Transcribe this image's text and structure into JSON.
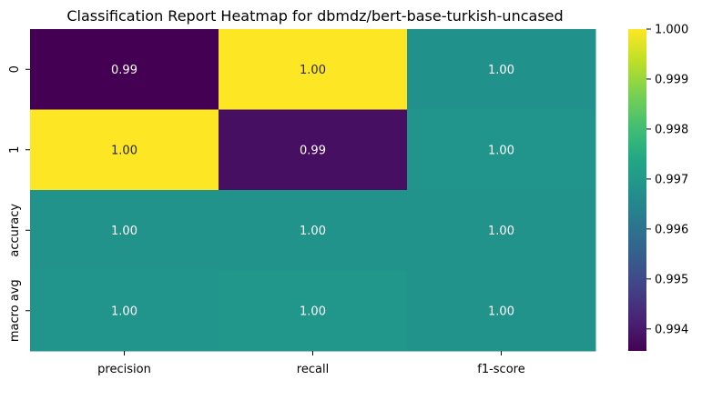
{
  "chart_data": {
    "type": "heatmap",
    "title": "Classification Report Heatmap for dbmdz/bert-base-turkish-uncased",
    "xlabel": "",
    "ylabel": "",
    "x_categories": [
      "precision",
      "recall",
      "f1-score"
    ],
    "y_categories": [
      "0",
      "1",
      "accuracy",
      "macro avg"
    ],
    "values": [
      [
        0.99356,
        1.0,
        0.99678
      ],
      [
        1.0,
        0.99382,
        0.9969
      ],
      [
        0.99684,
        0.99684,
        0.99684
      ],
      [
        0.9969,
        0.99691,
        0.99684
      ]
    ],
    "annotations": [
      [
        "0.99",
        "1.00",
        "1.00"
      ],
      [
        "1.00",
        "0.99",
        "1.00"
      ],
      [
        "1.00",
        "1.00",
        "1.00"
      ],
      [
        "1.00",
        "1.00",
        "1.00"
      ]
    ],
    "colormap": "viridis",
    "vmin": 0.99356,
    "vmax": 1.0,
    "colorbar_ticks": [
      0.994,
      0.995,
      0.996,
      0.997,
      0.998,
      0.999,
      1.0
    ],
    "colorbar_tick_labels": [
      "0.994",
      "0.995",
      "0.996",
      "0.997",
      "0.998",
      "0.999",
      "1.000"
    ],
    "annotation_colors": {
      "light": "#ffffff",
      "dark": "#262626"
    }
  }
}
